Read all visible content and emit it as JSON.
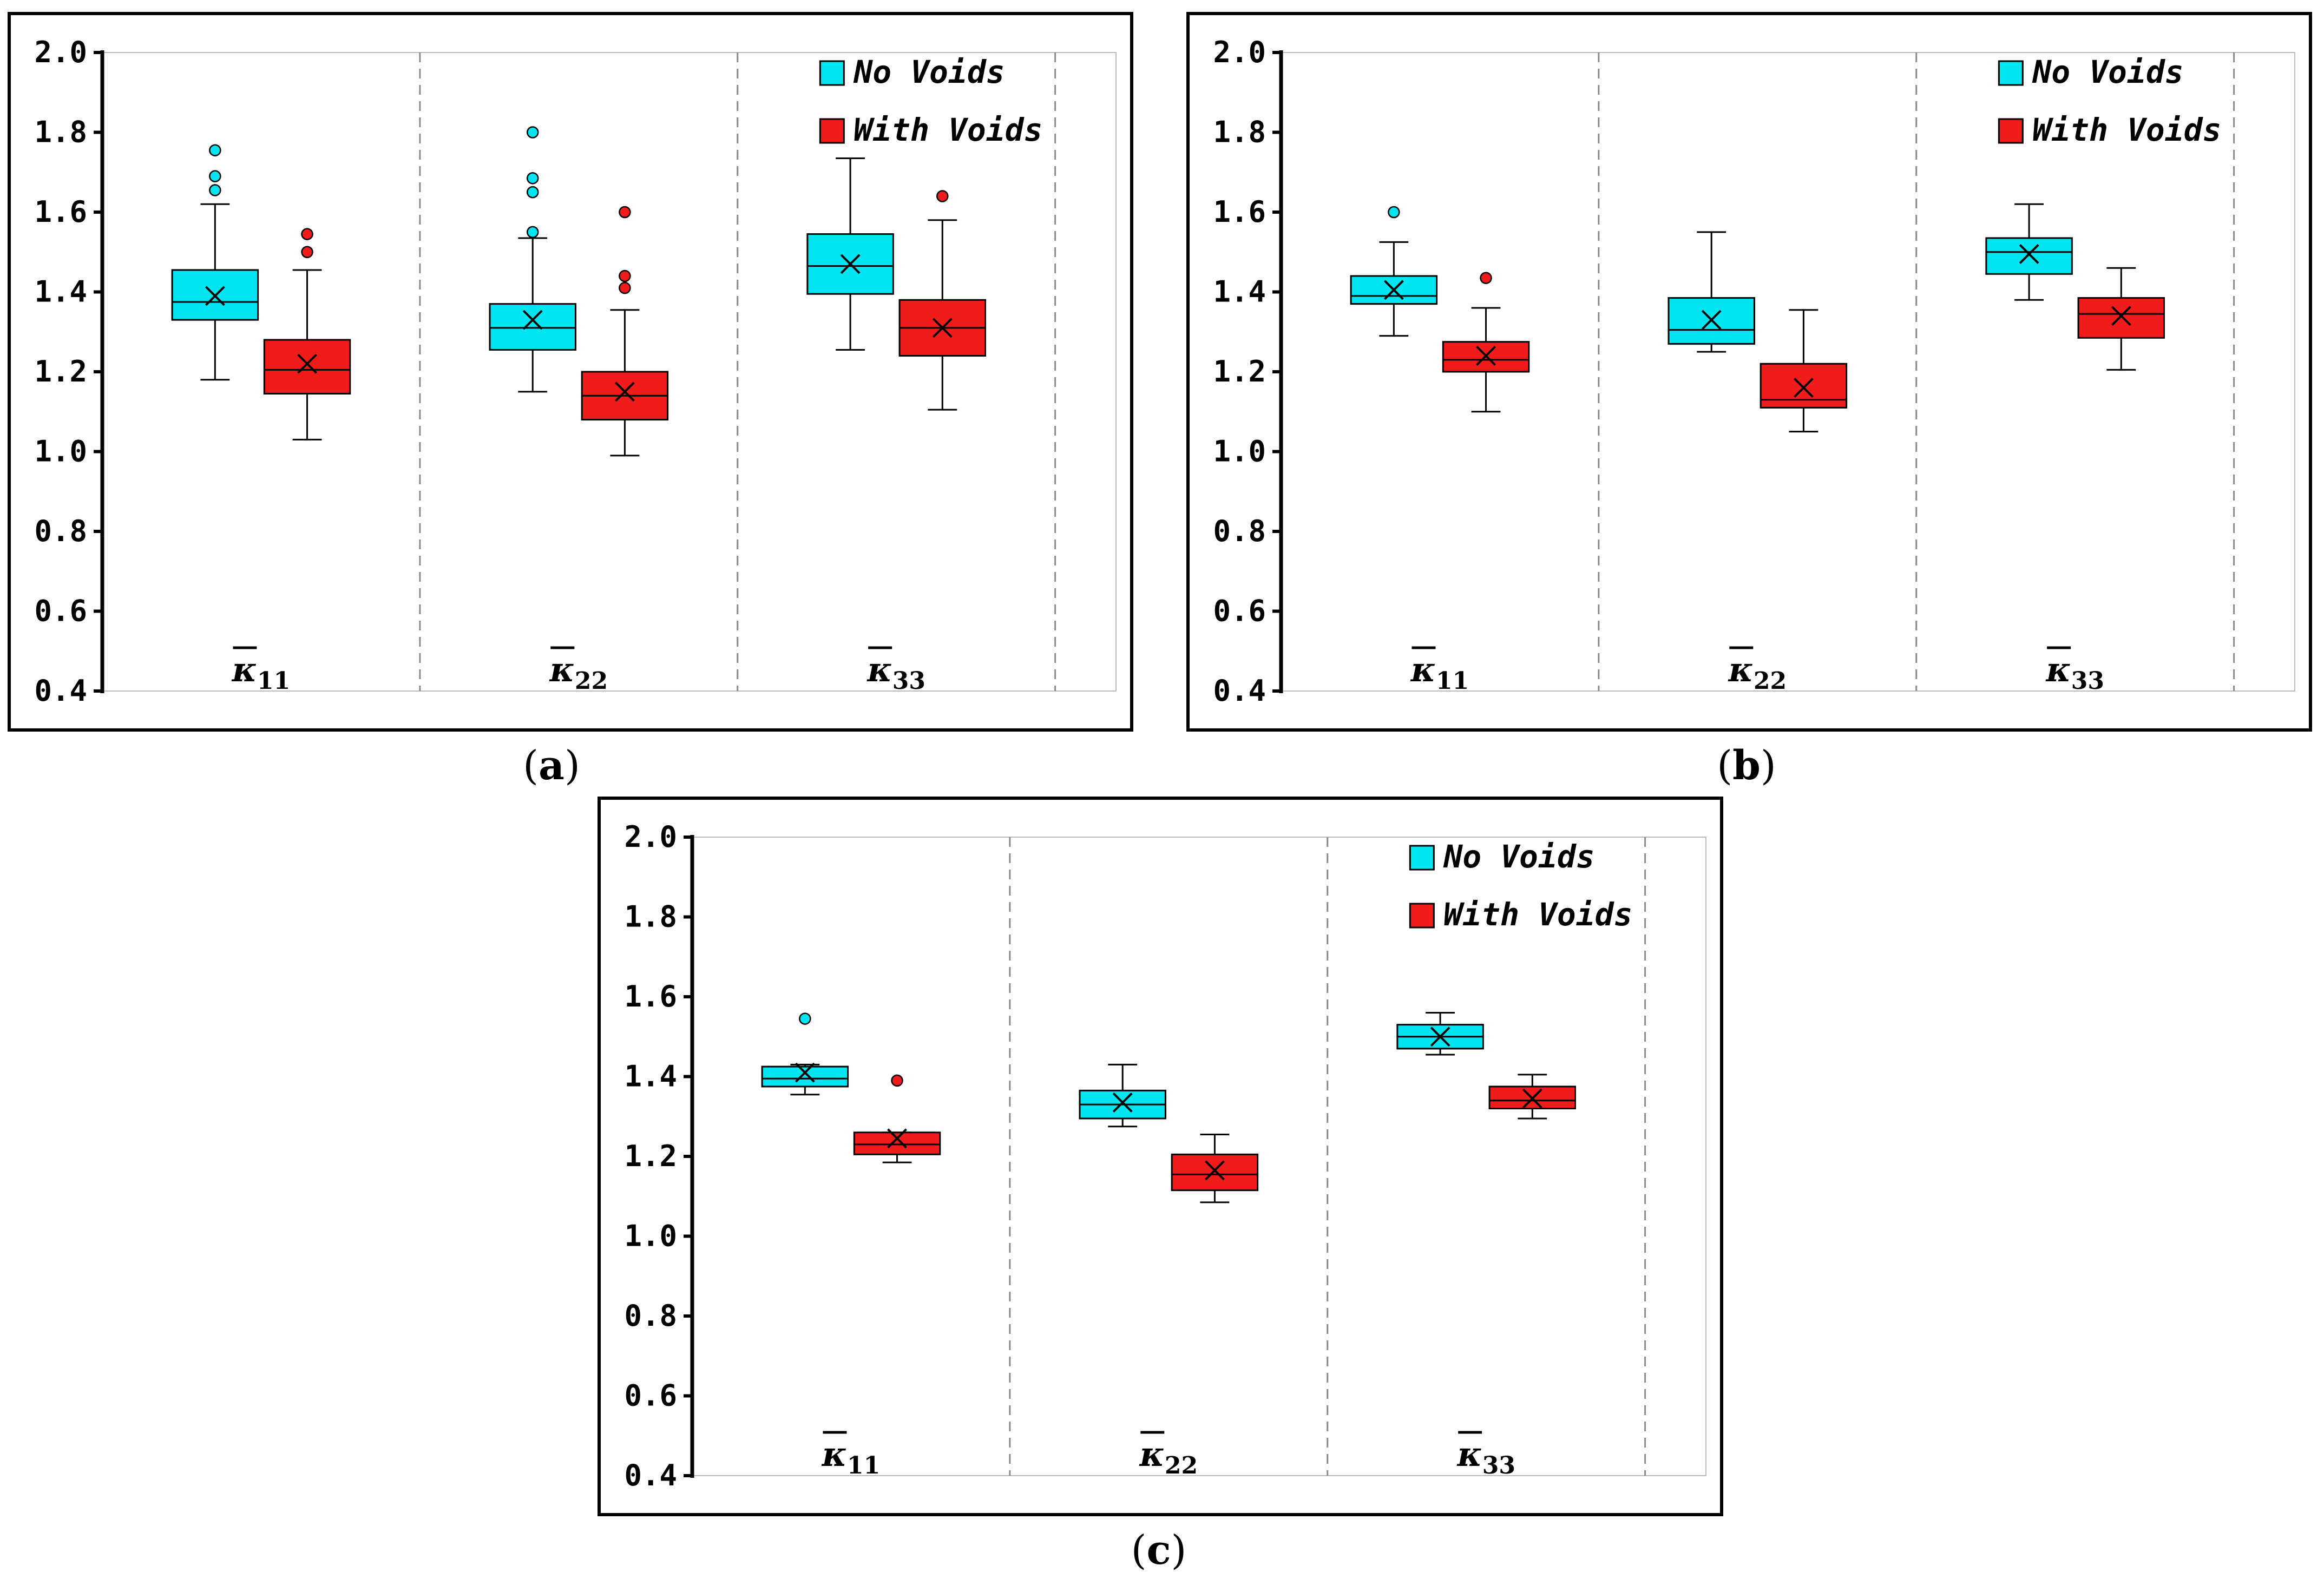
{
  "figure": {
    "panels": [
      {
        "label": "a"
      },
      {
        "label": "b"
      },
      {
        "label": "c"
      }
    ]
  },
  "chart_data": [
    {
      "type": "box",
      "panel": "a",
      "ylim": [
        0.4,
        2.0
      ],
      "yticks": [
        "0.4",
        "0.6",
        "0.8",
        "1.0",
        "1.2",
        "1.4",
        "1.6",
        "1.8",
        "2.0"
      ],
      "categories": [
        {
          "sym": "κ",
          "sub": "11"
        },
        {
          "sym": "κ",
          "sub": "22"
        },
        {
          "sym": "κ",
          "sub": "33"
        }
      ],
      "legend": {
        "position": "top-right",
        "entries": [
          "No Voids",
          "With Voids"
        ]
      },
      "colors": {
        "no_voids": "#00e5f0",
        "with_voids": "#f01c1c"
      },
      "series": [
        {
          "name": "No Voids",
          "boxes": [
            {
              "min": 1.18,
              "q1": 1.33,
              "median": 1.375,
              "q3": 1.455,
              "max": 1.62,
              "mean": 1.39,
              "outliers": [
                1.655,
                1.69,
                1.755
              ]
            },
            {
              "min": 1.15,
              "q1": 1.255,
              "median": 1.31,
              "q3": 1.37,
              "max": 1.535,
              "mean": 1.33,
              "outliers": [
                1.55,
                1.65,
                1.685,
                1.8
              ]
            },
            {
              "min": 1.255,
              "q1": 1.395,
              "median": 1.465,
              "q3": 1.545,
              "max": 1.735,
              "mean": 1.47,
              "outliers": []
            }
          ]
        },
        {
          "name": "With Voids",
          "boxes": [
            {
              "min": 1.03,
              "q1": 1.145,
              "median": 1.205,
              "q3": 1.28,
              "max": 1.455,
              "mean": 1.22,
              "outliers": [
                1.5,
                1.545
              ]
            },
            {
              "min": 0.99,
              "q1": 1.08,
              "median": 1.14,
              "q3": 1.2,
              "max": 1.355,
              "mean": 1.15,
              "outliers": [
                1.41,
                1.44,
                1.6
              ]
            },
            {
              "min": 1.105,
              "q1": 1.24,
              "median": 1.31,
              "q3": 1.38,
              "max": 1.58,
              "mean": 1.31,
              "outliers": [
                1.64
              ]
            }
          ]
        }
      ]
    },
    {
      "type": "box",
      "panel": "b",
      "ylim": [
        0.4,
        2.0
      ],
      "yticks": [
        "0.4",
        "0.6",
        "0.8",
        "1.0",
        "1.2",
        "1.4",
        "1.6",
        "1.8",
        "2.0"
      ],
      "categories": [
        {
          "sym": "κ",
          "sub": "11"
        },
        {
          "sym": "κ",
          "sub": "22"
        },
        {
          "sym": "κ",
          "sub": "33"
        }
      ],
      "legend": {
        "position": "top-right",
        "entries": [
          "No Voids",
          "With Voids"
        ]
      },
      "colors": {
        "no_voids": "#00e5f0",
        "with_voids": "#f01c1c"
      },
      "series": [
        {
          "name": "No Voids",
          "boxes": [
            {
              "min": 1.29,
              "q1": 1.37,
              "median": 1.39,
              "q3": 1.44,
              "max": 1.525,
              "mean": 1.405,
              "outliers": [
                1.6
              ]
            },
            {
              "min": 1.25,
              "q1": 1.27,
              "median": 1.305,
              "q3": 1.385,
              "max": 1.55,
              "mean": 1.33,
              "outliers": []
            },
            {
              "min": 1.38,
              "q1": 1.445,
              "median": 1.5,
              "q3": 1.535,
              "max": 1.62,
              "mean": 1.495,
              "outliers": []
            }
          ]
        },
        {
          "name": "With Voids",
          "boxes": [
            {
              "min": 1.1,
              "q1": 1.2,
              "median": 1.23,
              "q3": 1.275,
              "max": 1.36,
              "mean": 1.24,
              "outliers": [
                1.435
              ]
            },
            {
              "min": 1.05,
              "q1": 1.11,
              "median": 1.13,
              "q3": 1.22,
              "max": 1.355,
              "mean": 1.16,
              "outliers": []
            },
            {
              "min": 1.205,
              "q1": 1.285,
              "median": 1.345,
              "q3": 1.385,
              "max": 1.46,
              "mean": 1.34,
              "outliers": []
            }
          ]
        }
      ]
    },
    {
      "type": "box",
      "panel": "c",
      "ylim": [
        0.4,
        2.0
      ],
      "yticks": [
        "0.4",
        "0.6",
        "0.8",
        "1.0",
        "1.2",
        "1.4",
        "1.6",
        "1.8",
        "2.0"
      ],
      "categories": [
        {
          "sym": "κ",
          "sub": "11"
        },
        {
          "sym": "κ",
          "sub": "22"
        },
        {
          "sym": "κ",
          "sub": "33"
        }
      ],
      "legend": {
        "position": "top-right",
        "entries": [
          "No Voids",
          "With Voids"
        ]
      },
      "colors": {
        "no_voids": "#00e5f0",
        "with_voids": "#f01c1c"
      },
      "series": [
        {
          "name": "No Voids",
          "boxes": [
            {
              "min": 1.355,
              "q1": 1.375,
              "median": 1.395,
              "q3": 1.425,
              "max": 1.43,
              "mean": 1.41,
              "outliers": [
                1.545
              ]
            },
            {
              "min": 1.275,
              "q1": 1.295,
              "median": 1.33,
              "q3": 1.365,
              "max": 1.43,
              "mean": 1.335,
              "outliers": []
            },
            {
              "min": 1.455,
              "q1": 1.47,
              "median": 1.5,
              "q3": 1.53,
              "max": 1.56,
              "mean": 1.5,
              "outliers": []
            }
          ]
        },
        {
          "name": "With Voids",
          "boxes": [
            {
              "min": 1.185,
              "q1": 1.205,
              "median": 1.23,
              "q3": 1.26,
              "max": 1.26,
              "mean": 1.245,
              "outliers": [
                1.39
              ]
            },
            {
              "min": 1.085,
              "q1": 1.115,
              "median": 1.155,
              "q3": 1.205,
              "max": 1.255,
              "mean": 1.165,
              "outliers": []
            },
            {
              "min": 1.295,
              "q1": 1.32,
              "median": 1.34,
              "q3": 1.375,
              "max": 1.405,
              "mean": 1.345,
              "outliers": []
            }
          ]
        }
      ]
    }
  ]
}
